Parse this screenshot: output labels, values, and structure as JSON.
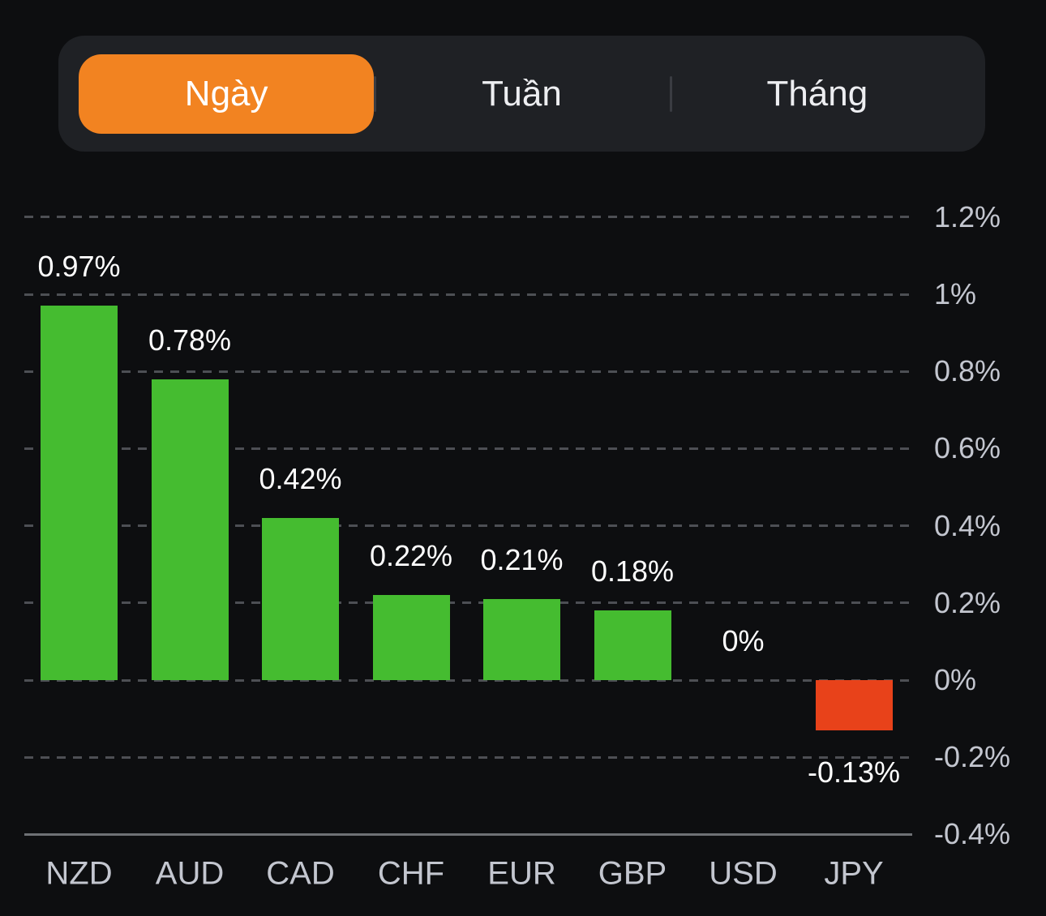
{
  "tabs": {
    "items": [
      {
        "label": "Ngày",
        "selected": true
      },
      {
        "label": "Tuần",
        "selected": false
      },
      {
        "label": "Tháng",
        "selected": false
      }
    ]
  },
  "colors": {
    "background": "#0D0E10",
    "tab_container": "#1F2125",
    "tab_divider": "#3A3C42",
    "accent_orange": "#F28321",
    "positive_green": "#45BC30",
    "negative_red": "#E8421A",
    "gridline": "#4D4F54",
    "axis_line": "#6E7175",
    "tick_text": "#C3C6CF"
  },
  "chart_data": {
    "type": "bar",
    "title": "",
    "xlabel": "",
    "ylabel": "",
    "categories": [
      "NZD",
      "AUD",
      "CAD",
      "CHF",
      "EUR",
      "GBP",
      "USD",
      "JPY"
    ],
    "values": [
      0.97,
      0.78,
      0.42,
      0.22,
      0.21,
      0.18,
      0,
      -0.13
    ],
    "bar_labels": [
      "0.97%",
      "0.78%",
      "0.42%",
      "0.22%",
      "0.21%",
      "0.18%",
      "0%",
      "-0.13%"
    ],
    "unit": "%",
    "ylim": [
      -0.4,
      1.2
    ],
    "grid": "dashed-horizontal",
    "legend": "none",
    "ytick_side": "right",
    "yticks": [
      {
        "label": "1.2%",
        "value": 1.2
      },
      {
        "label": "1%",
        "value": 1.0
      },
      {
        "label": "0.8%",
        "value": 0.8
      },
      {
        "label": "0.6%",
        "value": 0.6
      },
      {
        "label": "0.4%",
        "value": 0.4
      },
      {
        "label": "0.2%",
        "value": 0.2
      },
      {
        "label": "0%",
        "value": 0
      },
      {
        "label": "-0.2%",
        "value": -0.2
      },
      {
        "label": "-0.4%",
        "value": -0.4
      }
    ]
  }
}
